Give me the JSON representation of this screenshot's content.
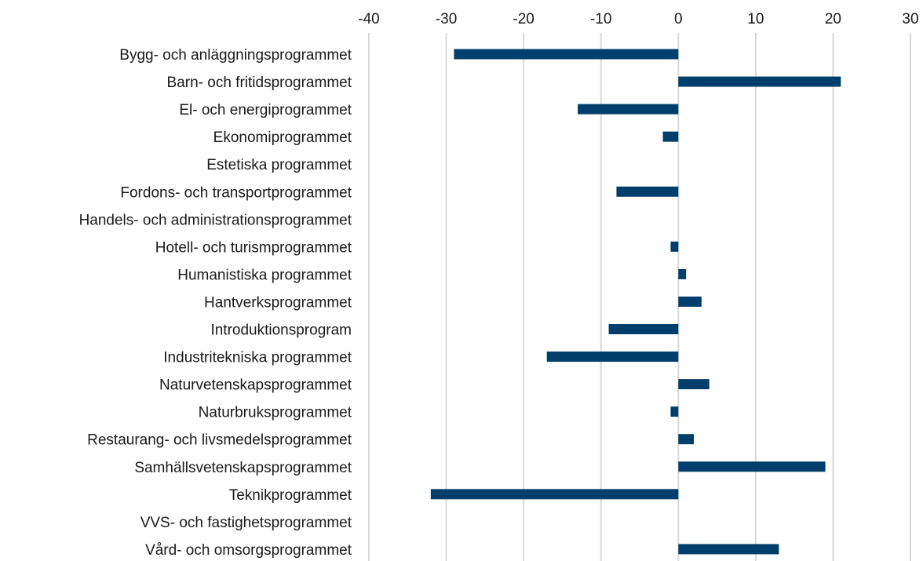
{
  "chart_data": {
    "type": "bar",
    "orientation": "horizontal",
    "categories": [
      "Bygg- och anläggningsprogrammet",
      "Barn- och fritidsprogrammet",
      "El- och energiprogrammet",
      "Ekonomiprogrammet",
      "Estetiska programmet",
      "Fordons- och transportprogrammet",
      "Handels- och administrationsprogrammet",
      "Hotell- och turismprogrammet",
      "Humanistiska programmet",
      "Hantverksprogrammet",
      "Introduktionsprogram",
      "Industritekniska programmet",
      "Naturvetenskapsprogrammet",
      "Naturbruksprogrammet",
      "Restaurang- och livsmedelsprogrammet",
      "Samhällsvetenskapsprogrammet",
      "Teknikprogrammet",
      "VVS- och fastighetsprogrammet",
      "Vård- och omsorgsprogrammet"
    ],
    "values": [
      -29,
      21,
      -13,
      -2,
      0,
      -8,
      0,
      -1,
      1,
      3,
      -9,
      -17,
      4,
      -1,
      2,
      19,
      -32,
      0,
      13
    ],
    "xlim": [
      -40,
      30
    ],
    "xticks": [
      -40,
      -30,
      -20,
      -10,
      0,
      10,
      20,
      30
    ],
    "tick_labels": [
      "-40",
      "-30",
      "-20",
      "-10",
      "0",
      "10",
      "20",
      "30"
    ],
    "axis_position": "top",
    "grid": true,
    "bar_color": "#003f6b",
    "grid_color": "#d9d9d9",
    "title": "",
    "xlabel": "",
    "ylabel": ""
  }
}
